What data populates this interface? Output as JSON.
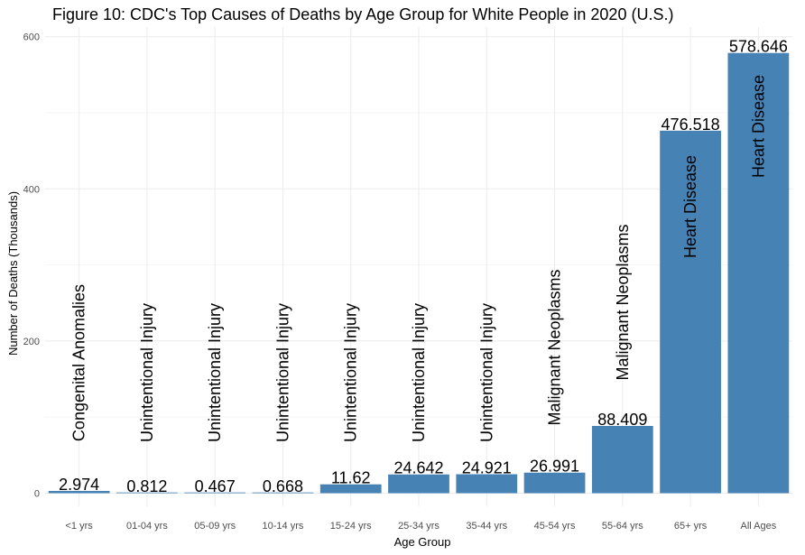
{
  "chart_data": {
    "type": "bar",
    "title": "Figure 10: CDC's Top Causes of Deaths by Age Group for White People in 2020 (U.S.)",
    "xlabel": "Age Group",
    "ylabel": "Number of Deaths (Thousands)",
    "ylim": [
      0,
      620
    ],
    "yticks": [
      0,
      200,
      400,
      600
    ],
    "categories": [
      "<1 yrs",
      "01-04 yrs",
      "05-09 yrs",
      "10-14 yrs",
      "15-24 yrs",
      "25-34 yrs",
      "35-44 yrs",
      "45-54 yrs",
      "55-64 yrs",
      "65+ yrs",
      "All Ages"
    ],
    "values": [
      2.974,
      0.812,
      0.467,
      0.668,
      11.62,
      24.642,
      24.921,
      26.991,
      88.409,
      476.518,
      578.646
    ],
    "value_labels": [
      "2.974",
      "0.812",
      "0.467",
      "0.668",
      "11.62",
      "24.642",
      "24.921",
      "26.991",
      "88.409",
      "476.518",
      "578.646"
    ],
    "causes": [
      "Congenital Anomalies",
      "Unintentional Injury",
      "Unintentional Injury",
      "Unintentional Injury",
      "Unintentional Injury",
      "Unintentional Injury",
      "Unintentional Injury",
      "Malignant Neoplasms",
      "Malignant Neoplasms",
      "Heart Disease",
      "Heart Disease"
    ],
    "bar_color": "#4682b4",
    "grid": true,
    "legend": "none"
  }
}
